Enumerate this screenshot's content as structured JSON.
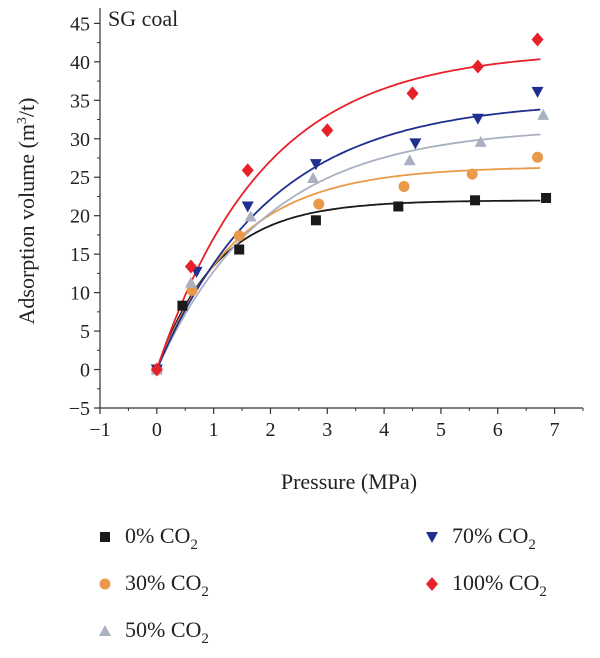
{
  "chart_data": {
    "type": "scatter",
    "annotation": "SG coal",
    "xlabel": "Pressure (MPa)",
    "ylabel": "Adsorption volume (m³/t)",
    "xlim": [
      -1,
      7.5
    ],
    "ylim": [
      -5,
      47
    ],
    "xticks": [
      -1,
      0,
      1,
      2,
      3,
      4,
      5,
      6,
      7
    ],
    "yticks": [
      -5,
      0,
      5,
      10,
      15,
      20,
      25,
      30,
      35,
      40,
      45
    ],
    "grid": false,
    "legend_position": "bottom",
    "series": [
      {
        "name": "0% CO₂",
        "label_main": "0% CO",
        "label_sub": "2",
        "color": "#1a1a1a",
        "marker": "square",
        "points": [
          [
            0.0,
            0.0
          ],
          [
            0.45,
            8.3
          ],
          [
            1.45,
            15.6
          ],
          [
            2.8,
            19.4
          ],
          [
            4.25,
            21.2
          ],
          [
            5.6,
            22.0
          ],
          [
            6.85,
            22.3
          ]
        ],
        "fit": {
          "a": 22.0,
          "b": 0.95
        }
      },
      {
        "name": "30% CO₂",
        "label_main": "30% CO",
        "label_sub": "2",
        "color": "#e8994a",
        "marker": "circle",
        "points": [
          [
            0.0,
            0.0
          ],
          [
            0.62,
            10.3
          ],
          [
            1.45,
            17.4
          ],
          [
            2.85,
            21.5
          ],
          [
            4.35,
            23.8
          ],
          [
            5.55,
            25.4
          ],
          [
            6.7,
            27.6
          ]
        ],
        "fit": {
          "a": 26.4,
          "b": 0.72
        }
      },
      {
        "name": "50% CO₂",
        "label_main": "50% CO",
        "label_sub": "2",
        "color": "#a9b0c2",
        "marker": "triangle-up",
        "points": [
          [
            0.0,
            0.0
          ],
          [
            0.6,
            11.3
          ],
          [
            1.65,
            19.9
          ],
          [
            2.75,
            24.9
          ],
          [
            4.45,
            27.2
          ],
          [
            5.7,
            29.6
          ],
          [
            6.8,
            33.1
          ]
        ],
        "fit": {
          "a": 31.5,
          "b": 0.52
        }
      },
      {
        "name": "70% CO₂",
        "label_main": "70% CO",
        "label_sub": "2",
        "color": "#1f2f8f",
        "marker": "triangle-down",
        "points": [
          [
            0.0,
            0.0
          ],
          [
            0.7,
            12.7
          ],
          [
            1.6,
            21.2
          ],
          [
            2.8,
            26.7
          ],
          [
            4.55,
            29.4
          ],
          [
            5.65,
            32.6
          ],
          [
            6.7,
            36.1
          ]
        ],
        "fit": {
          "a": 35.0,
          "b": 0.5
        }
      },
      {
        "name": "100% CO₂",
        "label_main": "100% CO",
        "label_sub": "2",
        "color": "#e8202a",
        "marker": "diamond",
        "points": [
          [
            0.0,
            0.0
          ],
          [
            0.6,
            13.4
          ],
          [
            1.6,
            25.9
          ],
          [
            3.0,
            31.1
          ],
          [
            4.5,
            35.9
          ],
          [
            5.65,
            39.4
          ],
          [
            6.7,
            42.9
          ]
        ],
        "fit": {
          "a": 41.5,
          "b": 0.53
        }
      }
    ]
  }
}
